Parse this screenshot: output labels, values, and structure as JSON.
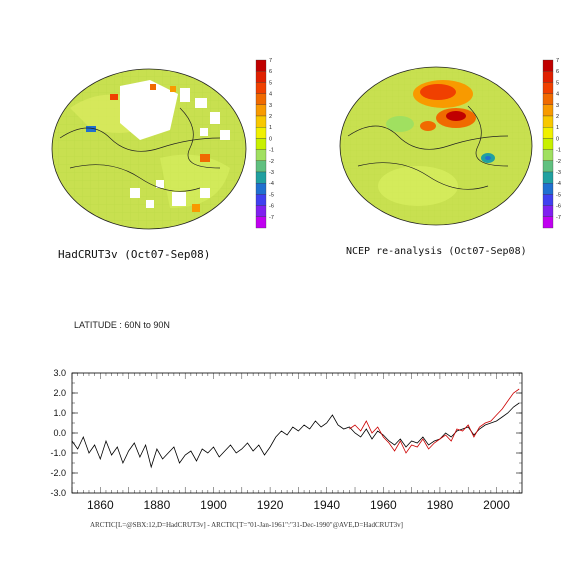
{
  "maps": [
    {
      "title": "HadCRUT3v (Oct07-Sep08)"
    },
    {
      "title": "NCEP re-analysis (Oct07-Sep08)"
    }
  ],
  "colorbar": {
    "labels": [
      "7",
      "6",
      "5",
      "4",
      "3",
      "2",
      "1",
      "0",
      "-1",
      "-2",
      "-3",
      "-4",
      "-5",
      "-6",
      "-7"
    ],
    "colors": [
      "#c00000",
      "#e02000",
      "#f04000",
      "#f06a00",
      "#f89a00",
      "#f8c800",
      "#f0f000",
      "#c8f000",
      "#a0e060",
      "#60c080",
      "#20a0a0",
      "#2070d0",
      "#4040f0",
      "#8020f0",
      "#c000f0"
    ]
  },
  "series_colors": {
    "hadcrut": "#000000",
    "ncep": "#cc0000"
  },
  "latitude_label": "LATITUDE : 60N to 90N",
  "footer": "ARCTIC[L=@SBX:12,D=HadCRUT3v] - ARCTIC[T=\"01-Jan-1961\":\"31-Dec-1990\"@AVE,D=HadCRUT3v]",
  "chart_data": {
    "type": "line",
    "xlim": [
      1850,
      2009
    ],
    "ylim": [
      -3.0,
      3.0
    ],
    "xticks": [
      "1860",
      "1880",
      "1900",
      "1920",
      "1940",
      "1960",
      "1980",
      "2000"
    ],
    "yticks": [
      "3.0",
      "2.0",
      "1.0",
      "0.0",
      "-1.0",
      "-2.0",
      "-3.0"
    ],
    "series": [
      {
        "x": [
          1850,
          1852,
          1854,
          1856,
          1858,
          1860,
          1862,
          1864,
          1866,
          1868,
          1870,
          1872,
          1874,
          1876,
          1878,
          1880,
          1882,
          1884,
          1886,
          1888,
          1890,
          1892,
          1894,
          1896,
          1898,
          1900,
          1902,
          1904,
          1906,
          1908,
          1910,
          1912,
          1914,
          1916,
          1918,
          1920,
          1922,
          1924,
          1926,
          1928,
          1930,
          1932,
          1934,
          1936,
          1938,
          1940,
          1942,
          1944,
          1946,
          1948,
          1950,
          1952,
          1954,
          1956,
          1958,
          1960,
          1962,
          1964,
          1966,
          1968,
          1970,
          1972,
          1974,
          1976,
          1978,
          1980,
          1982,
          1984,
          1986,
          1988,
          1990,
          1992,
          1994,
          1996,
          1998,
          2000,
          2002,
          2004,
          2006,
          2008
        ],
        "values": [
          -0.4,
          -0.8,
          -0.2,
          -1.0,
          -0.6,
          -1.3,
          -0.4,
          -1.1,
          -0.7,
          -1.5,
          -0.9,
          -0.5,
          -1.2,
          -0.6,
          -1.7,
          -0.8,
          -1.3,
          -1.0,
          -0.7,
          -1.5,
          -1.1,
          -0.9,
          -1.4,
          -0.8,
          -1.0,
          -0.7,
          -1.2,
          -0.9,
          -0.6,
          -1.0,
          -0.8,
          -0.5,
          -0.9,
          -0.6,
          -1.1,
          -0.7,
          -0.2,
          0.1,
          -0.1,
          0.3,
          0.1,
          0.4,
          0.2,
          0.6,
          0.3,
          0.5,
          0.9,
          0.4,
          0.2,
          0.3,
          0.0,
          -0.2,
          0.2,
          -0.3,
          0.1,
          -0.1,
          -0.4,
          -0.6,
          -0.3,
          -0.7,
          -0.4,
          -0.5,
          -0.2,
          -0.6,
          -0.4,
          -0.3,
          0.0,
          -0.2,
          0.1,
          0.2,
          0.3,
          -0.1,
          0.2,
          0.4,
          0.5,
          0.6,
          0.8,
          1.0,
          1.3,
          1.5
        ]
      },
      {
        "x": [
          1948,
          1950,
          1952,
          1954,
          1956,
          1958,
          1960,
          1962,
          1964,
          1966,
          1968,
          1970,
          1972,
          1974,
          1976,
          1978,
          1980,
          1982,
          1984,
          1986,
          1988,
          1990,
          1992,
          1994,
          1996,
          1998,
          2000,
          2002,
          2004,
          2006,
          2008
        ],
        "values": [
          0.2,
          0.4,
          0.1,
          0.6,
          0.0,
          0.3,
          -0.2,
          -0.5,
          -0.9,
          -0.4,
          -1.0,
          -0.6,
          -0.7,
          -0.3,
          -0.8,
          -0.5,
          -0.3,
          -0.1,
          -0.4,
          0.2,
          0.1,
          0.4,
          -0.2,
          0.3,
          0.5,
          0.6,
          0.9,
          1.2,
          1.6,
          2.0,
          2.2
        ]
      }
    ]
  }
}
